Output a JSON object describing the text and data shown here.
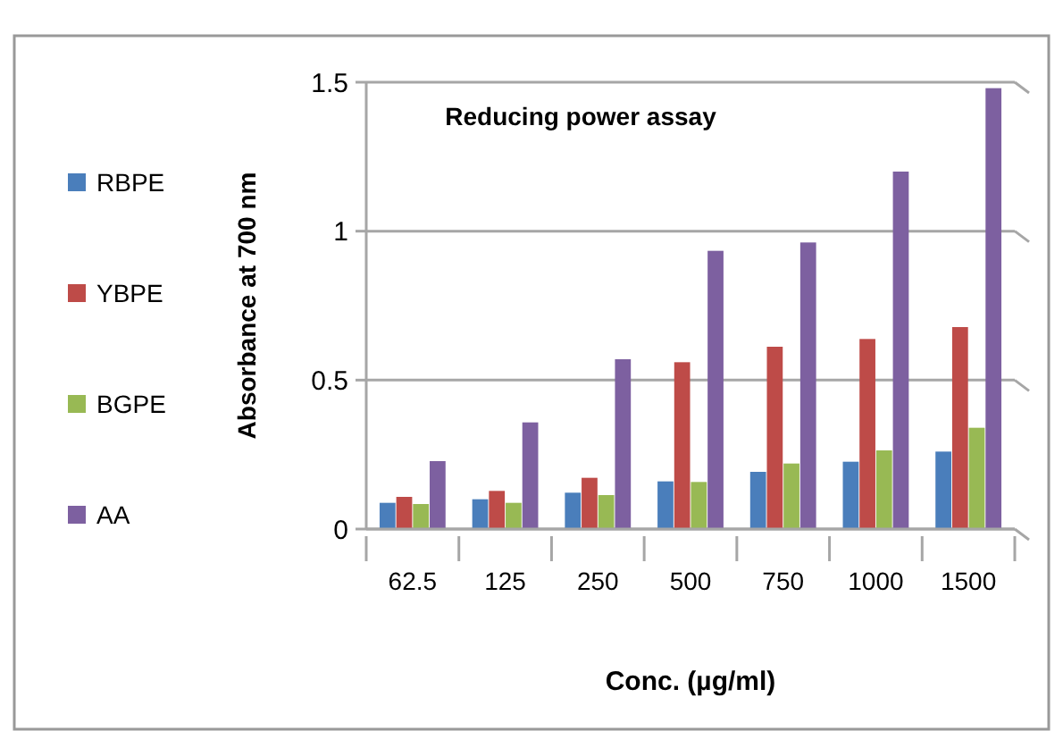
{
  "chart_data": {
    "type": "bar",
    "title": "Reducing power assay",
    "xlabel": "Conc. (µg/ml)",
    "ylabel": "Absorbance at 700 nm",
    "categories": [
      "62.5",
      "125",
      "250",
      "500",
      "750",
      "1000",
      "1500"
    ],
    "series": [
      {
        "name": "RBPE",
        "color": "#4a7ebb",
        "values": [
          0.088,
          0.1,
          0.122,
          0.16,
          0.192,
          0.226,
          0.26
        ]
      },
      {
        "name": "YBPE",
        "color": "#be4b48",
        "values": [
          0.108,
          0.128,
          0.172,
          0.56,
          0.612,
          0.638,
          0.678
        ]
      },
      {
        "name": "BGPE",
        "color": "#98b954",
        "values": [
          0.084,
          0.088,
          0.114,
          0.158,
          0.22,
          0.264,
          0.34
        ]
      },
      {
        "name": "AA",
        "color": "#7d60a0",
        "values": [
          0.228,
          0.358,
          0.57,
          0.934,
          0.962,
          1.2,
          1.48
        ]
      }
    ],
    "ylim": [
      0,
      1.5
    ],
    "yticks": [
      0,
      0.5,
      1,
      1.5
    ],
    "grid": "y",
    "legend": "left"
  }
}
